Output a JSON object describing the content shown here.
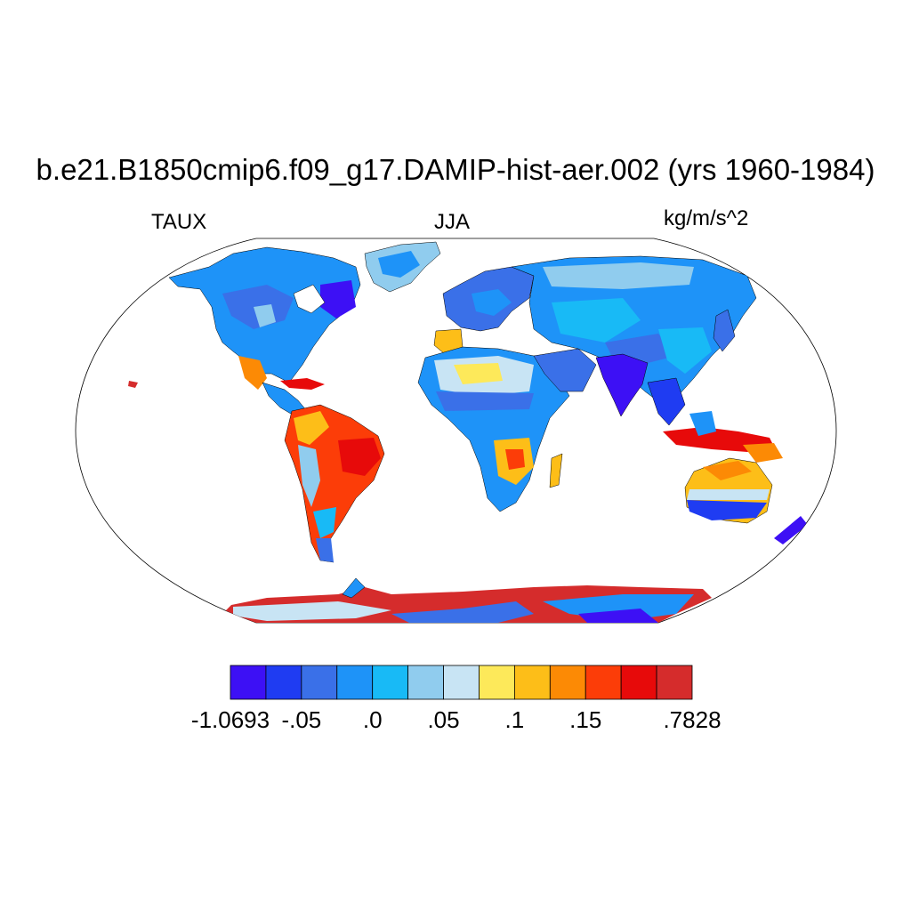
{
  "title": "b.e21.B1850cmip6.f09_g17.DAMIP-hist-aer.002 (yrs 1960-1984)",
  "left_string": "TAUX",
  "center_string": "JJA",
  "right_string": "kg/m/s^2",
  "colorbar": {
    "colors": [
      "#3d10f5",
      "#1f3cf2",
      "#3a70e8",
      "#1e93f8",
      "#18baf6",
      "#90ccee",
      "#c8e4f4",
      "#fde95a",
      "#fdbe18",
      "#fc8a05",
      "#fc3d08",
      "#e70a0a",
      "#d52c2c"
    ],
    "labels": [
      "-1.0693",
      "-.05",
      ".0",
      ".05",
      ".1",
      ".15",
      ".7828"
    ],
    "label_box_index": [
      0,
      2,
      4,
      6,
      8,
      10,
      13
    ]
  },
  "map": {
    "projection": "robinson",
    "field": "TAUX",
    "regions": [
      {
        "name": "north-america",
        "color": "#1e93f8"
      },
      {
        "name": "greenland",
        "color": "#90ccee"
      },
      {
        "name": "central-america",
        "color": "#fc3d08"
      },
      {
        "name": "south-america",
        "color": "#fc3d08"
      },
      {
        "name": "europe",
        "color": "#3a70e8"
      },
      {
        "name": "africa",
        "color": "#fdbe18"
      },
      {
        "name": "asia",
        "color": "#1e93f8"
      },
      {
        "name": "india",
        "color": "#3d10f5"
      },
      {
        "name": "maritime-continent",
        "color": "#e70a0a"
      },
      {
        "name": "australia",
        "color": "#fdbe18"
      },
      {
        "name": "antarctica",
        "color": "#d52c2c"
      }
    ]
  }
}
